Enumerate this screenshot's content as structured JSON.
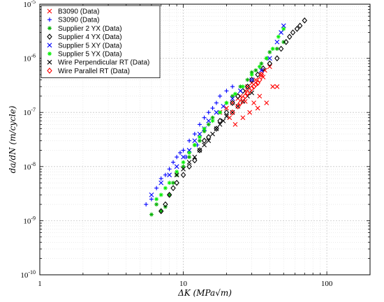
{
  "chart_data": {
    "type": "scatter",
    "title": "",
    "xlabel": "ΔK (MPa√m)",
    "ylabel": "da/dN (m/cycle)",
    "x_scale": "log",
    "y_scale": "log",
    "xlim": [
      1,
      200
    ],
    "ylim": [
      1e-10,
      1e-05
    ],
    "x_ticks": [
      {
        "v": 1,
        "label": "1"
      },
      {
        "v": 10,
        "label": "10"
      },
      {
        "v": 100,
        "label": "100"
      }
    ],
    "y_ticks": [
      {
        "v": 1e-10,
        "base": "10",
        "exp": "-10"
      },
      {
        "v": 1e-09,
        "base": "10",
        "exp": "-9"
      },
      {
        "v": 1e-08,
        "base": "10",
        "exp": "-8"
      },
      {
        "v": 1e-07,
        "base": "10",
        "exp": "-7"
      },
      {
        "v": 1e-06,
        "base": "10",
        "exp": "-6"
      },
      {
        "v": 1e-05,
        "base": "10",
        "exp": "-5"
      }
    ],
    "grid": true,
    "legend_position": "top-left",
    "series": [
      {
        "name": "B3090 (Data)",
        "color": "#ff0000",
        "marker": "x",
        "points": [
          [
            20,
            1.2e-07
          ],
          [
            22,
            1.5e-07
          ],
          [
            24,
            1.8e-07
          ],
          [
            25,
            2e-07
          ],
          [
            27,
            2.5e-07
          ],
          [
            28,
            3e-07
          ],
          [
            30,
            3.5e-07
          ],
          [
            32,
            4e-07
          ],
          [
            35,
            5e-07
          ],
          [
            37,
            6e-07
          ],
          [
            40,
            7e-07
          ],
          [
            42,
            3e-07
          ],
          [
            45,
            3e-07
          ],
          [
            23,
            6e-08
          ],
          [
            26,
            8e-08
          ],
          [
            29,
            1e-07
          ],
          [
            31,
            1.5e-07
          ],
          [
            34,
            2e-07
          ],
          [
            38,
            1.5e-07
          ],
          [
            18,
            1e-07
          ],
          [
            21,
            8e-08
          ],
          [
            33,
            1.2e-07
          ],
          [
            36,
            4.5e-07
          ],
          [
            27,
            1.6e-07
          ]
        ]
      },
      {
        "name": "S3090 (Data)",
        "color": "#0000ff",
        "marker": "+",
        "points": [
          [
            5.5,
            2e-09
          ],
          [
            6,
            2.5e-09
          ],
          [
            6.5,
            4e-09
          ],
          [
            7,
            6e-09
          ],
          [
            7.5,
            7e-09
          ],
          [
            8,
            9e-09
          ],
          [
            8.5,
            1.2e-08
          ],
          [
            9,
            1.5e-08
          ],
          [
            9.5,
            1.8e-08
          ],
          [
            10,
            2e-08
          ],
          [
            11,
            3e-08
          ],
          [
            12,
            4e-08
          ],
          [
            13,
            6e-08
          ],
          [
            14,
            8e-08
          ],
          [
            15,
            1e-07
          ],
          [
            16,
            1.2e-07
          ],
          [
            17,
            1.5e-07
          ],
          [
            18,
            2e-07
          ],
          [
            20,
            2.5e-07
          ],
          [
            22,
            3e-07
          ],
          [
            10.5,
            1.5e-08
          ],
          [
            12.5,
            2.5e-08
          ]
        ]
      },
      {
        "name": "Supplier 2 YX (Data)",
        "color": "#00b000",
        "marker": "*",
        "points": [
          [
            6,
            1.3e-09
          ],
          [
            6.5,
            2e-09
          ],
          [
            7,
            1.5e-09
          ],
          [
            7.5,
            1.8e-09
          ],
          [
            8,
            3e-09
          ],
          [
            8.5,
            5e-09
          ],
          [
            9,
            7e-09
          ],
          [
            10,
            1e-08
          ],
          [
            11,
            1.5e-08
          ],
          [
            12,
            2.5e-08
          ],
          [
            13,
            3e-08
          ],
          [
            14,
            4.5e-08
          ],
          [
            15,
            6e-08
          ],
          [
            16,
            8e-08
          ],
          [
            18,
            1e-07
          ],
          [
            20,
            1.5e-07
          ],
          [
            22,
            2e-07
          ],
          [
            25,
            3e-07
          ],
          [
            28,
            4e-07
          ],
          [
            30,
            5.5e-07
          ],
          [
            32,
            6e-07
          ],
          [
            35,
            8e-07
          ],
          [
            38,
            1e-06
          ],
          [
            40,
            1.3e-06
          ],
          [
            45,
            1.5e-06
          ],
          [
            50,
            2e-06
          ]
        ]
      },
      {
        "name": "Supplier 4 YX (Data)",
        "color": "#000000",
        "marker": "diamond",
        "points": [
          [
            7,
            1.5e-09
          ],
          [
            7.5,
            2e-09
          ],
          [
            8,
            3e-09
          ],
          [
            8.5,
            4e-09
          ],
          [
            9,
            5e-09
          ],
          [
            10,
            7e-09
          ],
          [
            11,
            1e-08
          ],
          [
            12,
            1.3e-08
          ],
          [
            13,
            2e-08
          ],
          [
            14,
            3e-08
          ],
          [
            15,
            3.5e-08
          ],
          [
            17,
            5e-08
          ],
          [
            18,
            7e-08
          ],
          [
            20,
            1e-07
          ],
          [
            22,
            1.5e-07
          ],
          [
            24,
            2e-07
          ],
          [
            26,
            2.5e-07
          ],
          [
            28,
            3e-07
          ],
          [
            30,
            4e-07
          ],
          [
            33,
            5e-07
          ],
          [
            36,
            6.5e-07
          ],
          [
            40,
            8e-07
          ],
          [
            45,
            1e-06
          ],
          [
            48,
            1.5e-06
          ],
          [
            52,
            2e-06
          ],
          [
            55,
            2.5e-06
          ],
          [
            58,
            3e-06
          ],
          [
            62,
            3.5e-06
          ],
          [
            65,
            4e-06
          ],
          [
            70,
            5e-06
          ]
        ]
      },
      {
        "name": "Supplier 5 XY (Data)",
        "color": "#0000ff",
        "marker": "x",
        "points": [
          [
            6,
            3e-09
          ],
          [
            7,
            5e-09
          ],
          [
            8,
            7e-09
          ],
          [
            9,
            1e-08
          ],
          [
            10,
            1.5e-08
          ],
          [
            11,
            2e-08
          ],
          [
            12,
            3e-08
          ],
          [
            13,
            4e-08
          ],
          [
            14,
            5e-08
          ],
          [
            15,
            7e-08
          ],
          [
            17,
            1e-07
          ],
          [
            19,
            1.3e-07
          ],
          [
            22,
            1.8e-07
          ],
          [
            25,
            2.5e-07
          ],
          [
            30,
            4e-07
          ],
          [
            35,
            6e-07
          ],
          [
            40,
            1e-06
          ],
          [
            45,
            2e-06
          ],
          [
            48,
            3e-06
          ],
          [
            50,
            4e-06
          ]
        ]
      },
      {
        "name": "Supplier 5 YX (Data)",
        "color": "#00ee00",
        "marker": "*",
        "points": [
          [
            6.5,
            2.5e-09
          ],
          [
            7,
            3e-09
          ],
          [
            7.5,
            4e-09
          ],
          [
            8,
            5e-09
          ],
          [
            9,
            8e-09
          ],
          [
            10,
            1.2e-08
          ],
          [
            11,
            1.8e-08
          ],
          [
            12,
            2.5e-08
          ],
          [
            13,
            3.5e-08
          ],
          [
            14,
            5e-08
          ],
          [
            16,
            7e-08
          ],
          [
            18,
            1e-07
          ],
          [
            20,
            1.5e-07
          ],
          [
            23,
            2.2e-07
          ],
          [
            26,
            3e-07
          ],
          [
            30,
            5e-07
          ],
          [
            34,
            7e-07
          ],
          [
            38,
            1e-06
          ],
          [
            42,
            1.5e-06
          ],
          [
            46,
            2.5e-06
          ],
          [
            50,
            3.5e-06
          ]
        ]
      },
      {
        "name": "Wire Perpendicular RT (Data)",
        "color": "#000000",
        "marker": "x",
        "points": [
          [
            9,
            7e-09
          ],
          [
            10,
            9e-09
          ],
          [
            11,
            1.2e-08
          ],
          [
            12,
            1.5e-08
          ],
          [
            13,
            2e-08
          ],
          [
            14,
            2.5e-08
          ],
          [
            15,
            3e-08
          ],
          [
            16,
            4e-08
          ],
          [
            17,
            5e-08
          ],
          [
            18,
            6e-08
          ],
          [
            19,
            7e-08
          ],
          [
            20,
            8.5e-08
          ],
          [
            22,
            1e-07
          ],
          [
            24,
            1.3e-07
          ],
          [
            26,
            1.6e-07
          ],
          [
            28,
            2e-07
          ],
          [
            30,
            2.3e-07
          ]
        ]
      },
      {
        "name": "Wire Parallel RT (Data)",
        "color": "#ff0000",
        "marker": "diamond",
        "points": [
          [
            22,
            1e-07
          ],
          [
            24,
            1.3e-07
          ],
          [
            25,
            1.5e-07
          ],
          [
            26,
            1.8e-07
          ],
          [
            27,
            2e-07
          ],
          [
            28,
            2.3e-07
          ],
          [
            29,
            2.5e-07
          ],
          [
            30,
            2.8e-07
          ],
          [
            31,
            3e-07
          ],
          [
            32,
            3.3e-07
          ],
          [
            33,
            3.5e-07
          ],
          [
            34,
            4e-07
          ],
          [
            35,
            5e-07
          ]
        ]
      }
    ]
  }
}
